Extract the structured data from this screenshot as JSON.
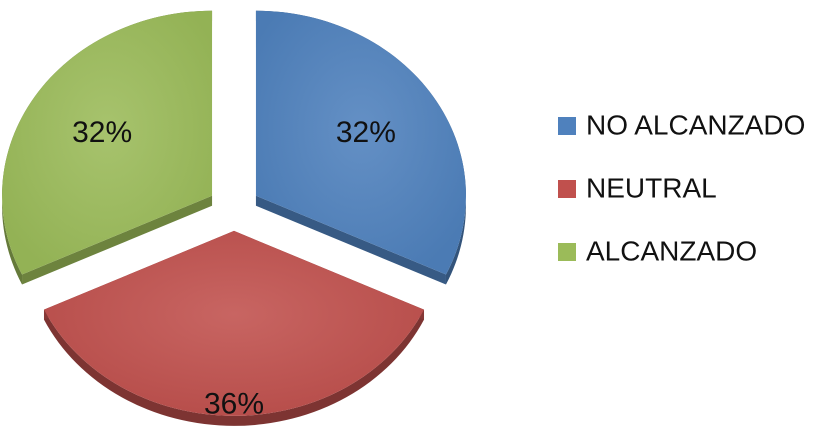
{
  "chart_data": {
    "type": "pie",
    "style": "exploded-3d",
    "title": "",
    "legend_position": "right",
    "slices": [
      {
        "label": "NO ALCANZADO",
        "value": 32,
        "value_label": "32%",
        "color": "#4f81bd"
      },
      {
        "label": "NEUTRAL",
        "value": 36,
        "value_label": "36%",
        "color": "#c0504d"
      },
      {
        "label": "ALCANZADO",
        "value": 32,
        "value_label": "32%",
        "color": "#9bbb59"
      }
    ]
  }
}
